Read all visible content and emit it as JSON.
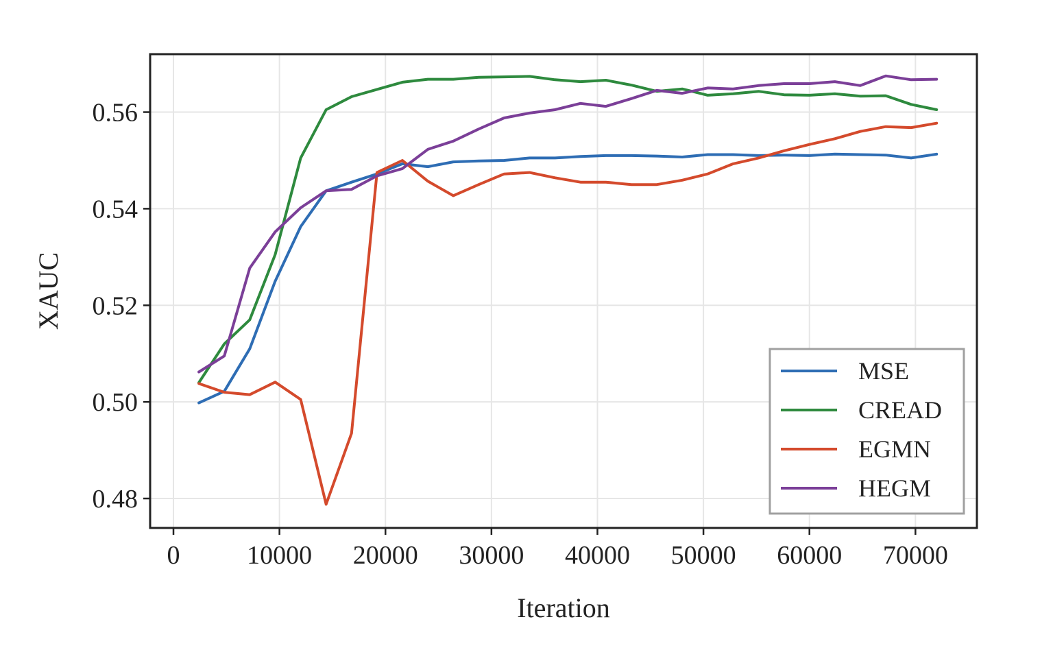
{
  "chart_data": {
    "type": "line",
    "title": "",
    "xlabel": "Iteration",
    "ylabel": "XAUC",
    "xlim": [
      -2200,
      75800
    ],
    "ylim": [
      0.4739,
      0.572
    ],
    "xticks": [
      0,
      10000,
      20000,
      30000,
      40000,
      50000,
      60000,
      70000
    ],
    "xtick_labels": [
      "0",
      "10000",
      "20000",
      "30000",
      "40000",
      "50000",
      "60000",
      "70000"
    ],
    "yticks": [
      0.48,
      0.5,
      0.52,
      0.54,
      0.56
    ],
    "ytick_labels": [
      "0.48",
      "0.50",
      "0.52",
      "0.54",
      "0.56"
    ],
    "grid": true,
    "legend_position": "lower-right",
    "x": [
      2400,
      4800,
      7200,
      9600,
      12000,
      14400,
      16800,
      19200,
      21600,
      24000,
      26400,
      28800,
      31200,
      33600,
      36000,
      38400,
      40800,
      43200,
      45600,
      48000,
      50400,
      52800,
      55200,
      57600,
      60000,
      62400,
      64800,
      67200,
      69600,
      72000
    ],
    "series": [
      {
        "name": "MSE",
        "color": "#2e6db4",
        "values": [
          0.4998,
          0.5022,
          0.511,
          0.525,
          0.5363,
          0.5437,
          0.5455,
          0.5472,
          0.5493,
          0.5487,
          0.5497,
          0.5499,
          0.55,
          0.5505,
          0.5505,
          0.5508,
          0.551,
          0.551,
          0.5509,
          0.5507,
          0.5512,
          0.5512,
          0.551,
          0.5511,
          0.551,
          0.5513,
          0.5512,
          0.5511,
          0.5505,
          0.5513
        ]
      },
      {
        "name": "CREAD",
        "color": "#2e8a3e",
        "values": [
          0.504,
          0.512,
          0.517,
          0.5305,
          0.5505,
          0.5605,
          0.5632,
          0.5647,
          0.5662,
          0.5668,
          0.5668,
          0.5672,
          0.5673,
          0.5674,
          0.5667,
          0.5663,
          0.5666,
          0.5656,
          0.5643,
          0.5648,
          0.5635,
          0.5638,
          0.5643,
          0.5636,
          0.5635,
          0.5638,
          0.5633,
          0.5634,
          0.5616,
          0.5605
        ]
      },
      {
        "name": "EGMN",
        "color": "#d44a2c",
        "values": [
          0.5038,
          0.502,
          0.5015,
          0.5041,
          0.5005,
          0.4788,
          0.4935,
          0.5475,
          0.55,
          0.5457,
          0.5427,
          0.545,
          0.5472,
          0.5475,
          0.5464,
          0.5455,
          0.5455,
          0.545,
          0.545,
          0.5459,
          0.5472,
          0.5493,
          0.5505,
          0.552,
          0.5533,
          0.5545,
          0.556,
          0.557,
          0.5568,
          0.5577
        ]
      },
      {
        "name": "HEGM",
        "color": "#7b3f98",
        "values": [
          0.5062,
          0.5095,
          0.5277,
          0.5352,
          0.5402,
          0.5437,
          0.544,
          0.5468,
          0.5483,
          0.5523,
          0.554,
          0.5565,
          0.5588,
          0.5598,
          0.5605,
          0.5618,
          0.5612,
          0.5628,
          0.5645,
          0.5639,
          0.565,
          0.5648,
          0.5655,
          0.5659,
          0.5659,
          0.5663,
          0.5655,
          0.5675,
          0.5667,
          0.5668
        ]
      }
    ]
  }
}
